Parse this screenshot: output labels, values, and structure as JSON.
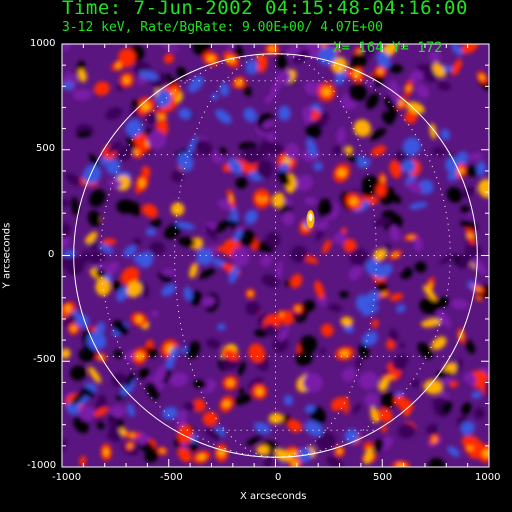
{
  "header": {
    "title": "Time:  7-Jun-2002 04:15:48-04:16:00",
    "subtitle": "3-12 keV, Rate/BgRate:  9.00E+00/  4.07E+00",
    "cursor_readout": "X=  164 Y=  172"
  },
  "plot": {
    "xlabel": "X arcseconds",
    "ylabel": "Y arcseconds",
    "x_ticks": [
      "-1000",
      "-500",
      "0",
      "500",
      "1000"
    ],
    "y_ticks": [
      "1000",
      "500",
      "0",
      "-500",
      "-1000"
    ],
    "xlim": [
      -1000,
      1000
    ],
    "ylim": [
      -1000,
      1000
    ],
    "solar_limb_radius_arcsec": 945,
    "grid": "dotted heliographic grid",
    "colormap": [
      "#000000",
      "#3a0058",
      "#7a1fa8",
      "#ff2a00",
      "#ffb000",
      "#ffffff",
      "#3b57e0"
    ],
    "bright_source": {
      "x_arcsec": 164,
      "y_arcsec": 172
    }
  },
  "colors": {
    "text_green": "#22e022",
    "axes_white": "#ffffff",
    "background": "#000000"
  }
}
